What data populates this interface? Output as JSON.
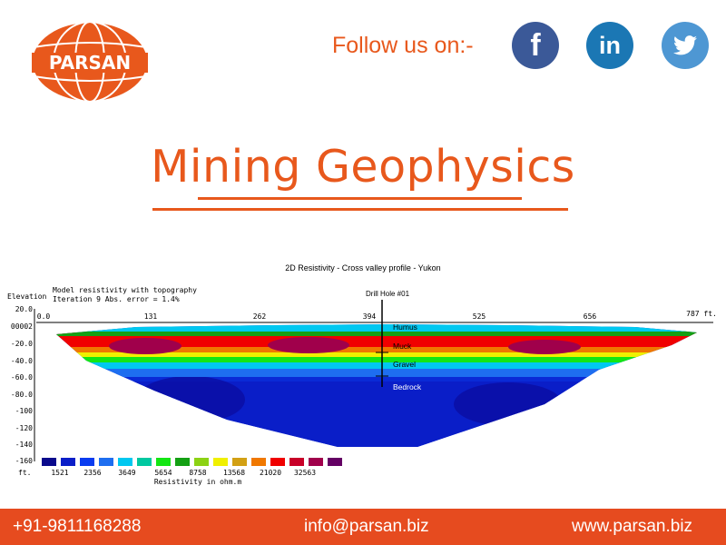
{
  "header": {
    "logo_text": "PARSAN",
    "follow_text": "Follow us on:-",
    "social": [
      {
        "name": "facebook-icon",
        "glyph": "f",
        "color": "#3b5998"
      },
      {
        "name": "linkedin-icon",
        "glyph": "in",
        "color": "#1b77b4"
      },
      {
        "name": "twitter-icon",
        "glyph": "bird",
        "color": "#4e97d3"
      }
    ]
  },
  "page_title": "Mining Geophysics",
  "figure": {
    "title": "2D Resistivity - Cross valley profile - Yukon",
    "model_line1": "Model resistivity with topography",
    "model_line2": "Iteration 9 Abs. error = 1.4%",
    "elevation_label": "Elevation",
    "unit_label": "ft.",
    "drill_hole": "Drill Hole #01",
    "distance_ticks": [
      "0.0",
      "131",
      "262",
      "394",
      "525",
      "656",
      "787 ft."
    ],
    "elevation_ticks": [
      "20.0",
      "00002",
      "-20.0",
      "-40.0",
      "-60.0",
      "-80.0",
      "-100",
      "-120",
      "-140",
      "-160"
    ],
    "layers": [
      "Humus",
      "Muck",
      "Gravel",
      "Bedrock"
    ],
    "scale_values": [
      "1521",
      "2356",
      "3649",
      "5654",
      "8758",
      "13568",
      "21020",
      "32563"
    ],
    "scale_colors": [
      "#0a0a8c",
      "#0a1ec8",
      "#0a3cf0",
      "#1e6ef0",
      "#00c8f0",
      "#00c8a0",
      "#14e614",
      "#14a014",
      "#8cd214",
      "#f0f000",
      "#d2a014",
      "#f07800",
      "#f00000",
      "#c80028",
      "#a0004b",
      "#640064"
    ],
    "scale_label": "Resistivity in ohm.m"
  },
  "footer": {
    "phone": "+91-9811168288",
    "email": "info@parsan.biz",
    "website": "www.parsan.biz"
  }
}
